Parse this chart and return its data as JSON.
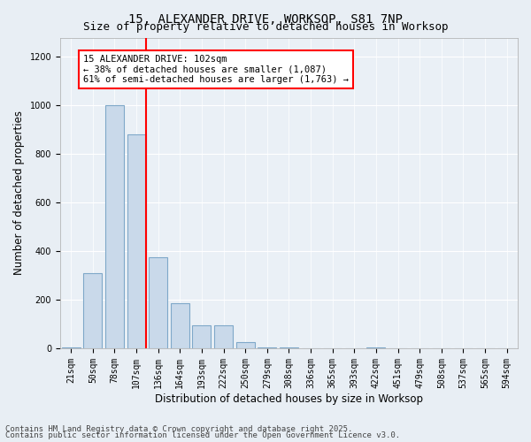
{
  "title_line1": "15, ALEXANDER DRIVE, WORKSOP, S81 7NP",
  "title_line2": "Size of property relative to detached houses in Worksop",
  "xlabel": "Distribution of detached houses by size in Worksop",
  "ylabel": "Number of detached properties",
  "categories": [
    "21sqm",
    "50sqm",
    "78sqm",
    "107sqm",
    "136sqm",
    "164sqm",
    "193sqm",
    "222sqm",
    "250sqm",
    "279sqm",
    "308sqm",
    "336sqm",
    "365sqm",
    "393sqm",
    "422sqm",
    "451sqm",
    "479sqm",
    "508sqm",
    "537sqm",
    "565sqm",
    "594sqm"
  ],
  "values": [
    5,
    310,
    1000,
    880,
    375,
    185,
    95,
    95,
    25,
    5,
    5,
    0,
    0,
    0,
    5,
    0,
    0,
    0,
    0,
    0,
    0
  ],
  "bar_color": "#c9d9ea",
  "bar_edgecolor": "#7fa8c9",
  "vline_color": "red",
  "vline_pos": 3.43,
  "annotation_box_text": "15 ALEXANDER DRIVE: 102sqm\n← 38% of detached houses are smaller (1,087)\n61% of semi-detached houses are larger (1,763) →",
  "box_facecolor": "white",
  "box_edgecolor": "red",
  "ylim": [
    0,
    1280
  ],
  "yticks": [
    0,
    200,
    400,
    600,
    800,
    1000,
    1200
  ],
  "footnote_line1": "Contains HM Land Registry data © Crown copyright and database right 2025.",
  "footnote_line2": "Contains public sector information licensed under the Open Government Licence v3.0.",
  "background_color": "#e8eef4",
  "plot_background": "#eaf0f6",
  "grid_color": "white",
  "title_fontsize": 10,
  "subtitle_fontsize": 9,
  "axis_label_fontsize": 8.5,
  "tick_fontsize": 7,
  "footnote_fontsize": 6.5,
  "annotation_fontsize": 7.5
}
